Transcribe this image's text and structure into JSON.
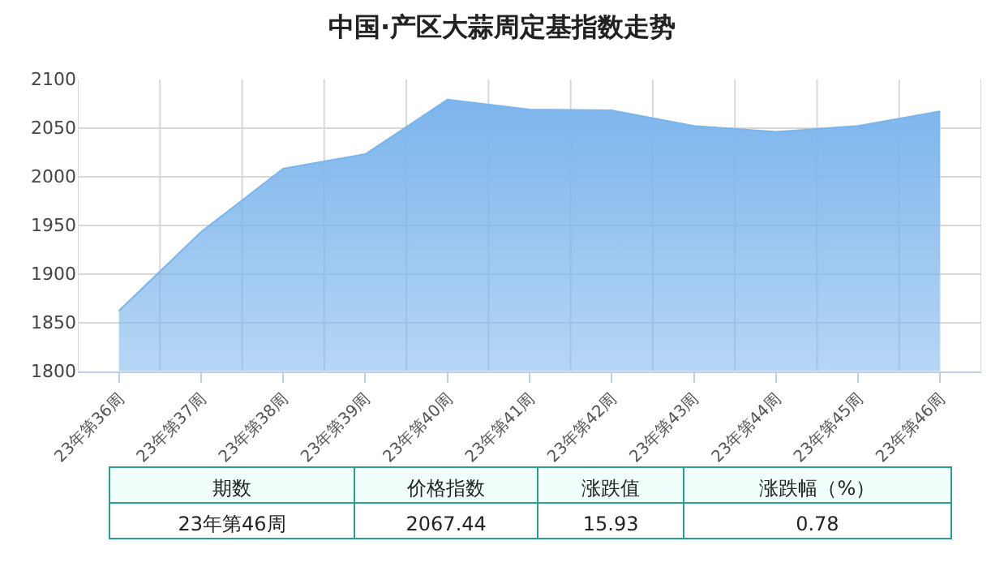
{
  "chart_data": {
    "type": "area",
    "title": "中国·产区大蒜周定基指数走势",
    "categories": [
      "23年第36周",
      "23年第37周",
      "23年第38周",
      "23年第39周",
      "23年第40周",
      "23年第41周",
      "23年第42周",
      "23年第43周",
      "23年第44周",
      "23年第45周",
      "23年第46周"
    ],
    "series": [
      {
        "color": "#7cb5ec",
        "values": [
          1862,
          1943,
          2008,
          2023,
          2079,
          2069,
          2068,
          2052,
          2046,
          2052,
          2067
        ]
      }
    ],
    "ylim": [
      1800,
      2100
    ],
    "yticks": [
      1800,
      1850,
      1900,
      1950,
      2000,
      2050,
      2100
    ],
    "grid": true,
    "legend": false,
    "annotations": [
      "期数",
      "价格指数",
      "涨跌值",
      "涨跌幅（%）",
      "23年第46周",
      "2067.44",
      "15.93",
      "0.78"
    ]
  }
}
